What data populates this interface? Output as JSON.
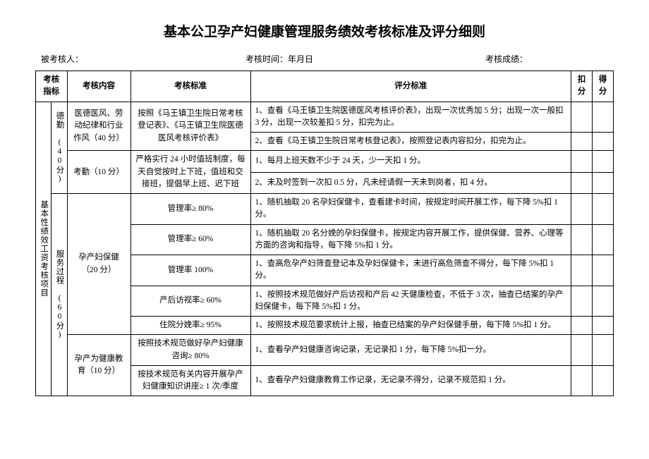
{
  "title": "基本公卫孕产妇健康管理服务绩效考核标准及评分细则",
  "meta": {
    "assessee": "被考核人：",
    "time": "考核时间：年月日",
    "score": "考核成绩："
  },
  "header": {
    "col1": "考核指标",
    "col2": "考核内容",
    "col3": "考核标准",
    "col4": "评分标准",
    "col5": "扣分",
    "col6": "得分"
  },
  "sidebar": {
    "main": "基本性绩效工资考核项目",
    "group1": "德勤 (40分)",
    "group2": "服务过程 (60分)"
  },
  "rows": {
    "r1": {
      "content": "医德医风、劳动纪律和行业作风（40 分）",
      "std": "按照《马王镇卫生院日常考核登记表》、《马王镇卫生院医德医风考核评价表》",
      "crit1": "1、查看《马王镇卫生院医德医风考核评价表》，出现一次优秀加 5 分；出现一次一般扣 3 分，出现一次较差扣 5 分，扣完为止。",
      "crit2": "2、查看《马王镇卫生院日常考核登记表》，按照登记表内容扣分，扣完为止。"
    },
    "r2": {
      "content": "考勤（10 分）",
      "std": "严格实行 24 小时值班制度，每天自觉按时上下班，值班和交接班，提倡早上班、迟下班",
      "crit1": "1、每月上班天数不少于 24 天，少一天扣 1 分。",
      "crit2": "2、未及时签到一次扣 0.5 分，凡未经请假一天未到岗者，扣 4 分。"
    },
    "r3": {
      "content": "孕产妇保健（20 分）",
      "s1": "管理率≥ 80%",
      "c1": "1、随机抽取 20 名孕妇保健卡，查看建卡时间，按规定时间开展工作，每下降 5%扣 1 分。",
      "s2": "管理率≥ 60%",
      "c2": "1、随机抽取 20 名分娩的孕妇保健卡，按规定内容开展工作，提供保健、营养、心理等方面的咨询和指导，每下降 5%扣 1 分。",
      "s3": "管理率 100%",
      "c3": "1、查高危孕产妇筛查登记本及孕妇保健卡，未进行高危筛查不得分，每下降 5%扣 1 分。",
      "s4": "产后访视率≥ 60%",
      "c4": "1、按照技术规范做好产后访视和产后 42 天健康检查，不低于 3 次，抽查已结案的孕产妇保健卡，每下降 5%扣 1 分。",
      "s5": "住院分娩率≥ 95%",
      "c5": "1、按照技术规范要求统计上报，抽查已结案的孕产妇保健手册，每下降 5%扣 1 分。"
    },
    "r4": {
      "content": "孕产为健康教育（10 分）",
      "s1": "按照技术规范做好孕产妇健康咨询≥ 80%",
      "c1": "1、查看孕产妇健康咨询记录，无记录扣 1 分，每下降 5%扣一分。",
      "s2": "按技术规范有关内容开展孕产妇健康知识讲座≥ 1 次/季度",
      "c2": "1、查看孕产妇健康教育工作记录，无记录不得分，记录不规范扣 1 分。"
    }
  }
}
